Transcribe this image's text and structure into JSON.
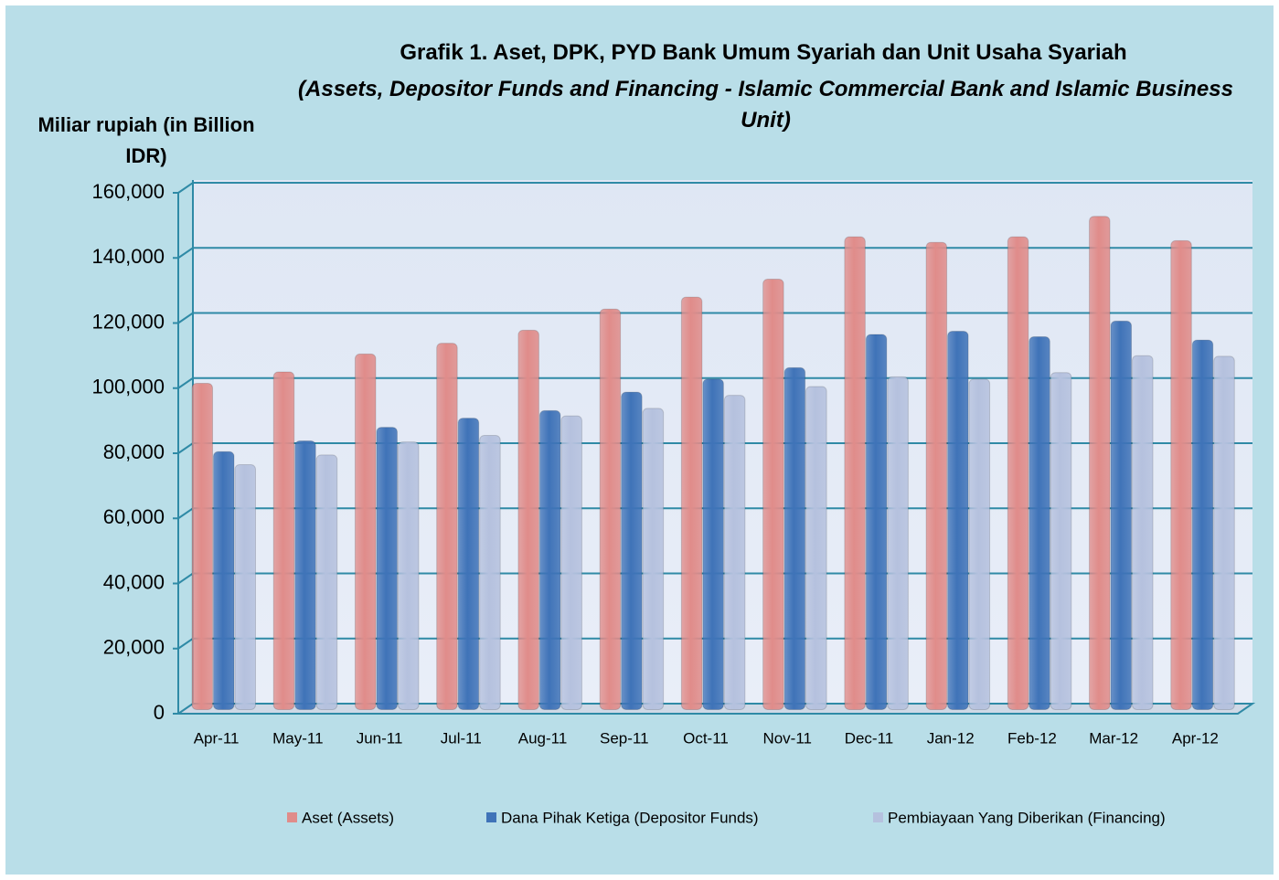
{
  "chart_data": {
    "type": "bar",
    "title": "Grafik 1. Aset, DPK, PYD Bank Umum Syariah dan Unit Usaha Syariah",
    "subtitle": "(Assets, Depositor Funds and Financing - Islamic Commercial Bank and Islamic Business Unit)",
    "y_label": "Miliar rupiah (in Billion IDR)",
    "categories": [
      "Apr-11",
      "May-11",
      "Jun-11",
      "Jul-11",
      "Aug-11",
      "Sep-11",
      "Oct-11",
      "Nov-11",
      "Dec-11",
      "Jan-12",
      "Feb-12",
      "Mar-12",
      "Apr-12"
    ],
    "series": [
      {
        "name": "Aset (Assets)",
        "color": "#e08c8a",
        "values": [
          100500,
          104000,
          109500,
          112800,
          116800,
          123300,
          127000,
          132500,
          145500,
          143800,
          145500,
          151800,
          144300
        ]
      },
      {
        "name": "Dana Pihak Ketiga (Depositor Funds)",
        "color": "#3f73b8",
        "values": [
          79500,
          82800,
          87000,
          89800,
          92100,
          97800,
          101800,
          105300,
          115500,
          116500,
          114800,
          119600,
          113800
        ]
      },
      {
        "name": "Pembiayaan Yang Diberikan (Financing)",
        "color": "#b5c1de",
        "values": [
          75500,
          78500,
          82500,
          84500,
          90500,
          92800,
          96800,
          99500,
          102500,
          101800,
          103800,
          109000,
          108800
        ]
      }
    ],
    "ylim": [
      0,
      160000
    ],
    "yticks": [
      0,
      {
        "value": 20000,
        "label": "20,000"
      },
      {
        "value": 40000,
        "label": "40,000"
      },
      {
        "value": 60000,
        "label": "60,000"
      },
      {
        "value": 80000,
        "label": "80,000"
      },
      {
        "value": 100000,
        "label": "100,000"
      },
      {
        "value": 120000,
        "label": "120,000"
      },
      {
        "value": 140000,
        "label": "140,000"
      },
      {
        "value": 160000,
        "label": "160,000"
      }
    ],
    "grid": true,
    "legend": "bottom"
  }
}
